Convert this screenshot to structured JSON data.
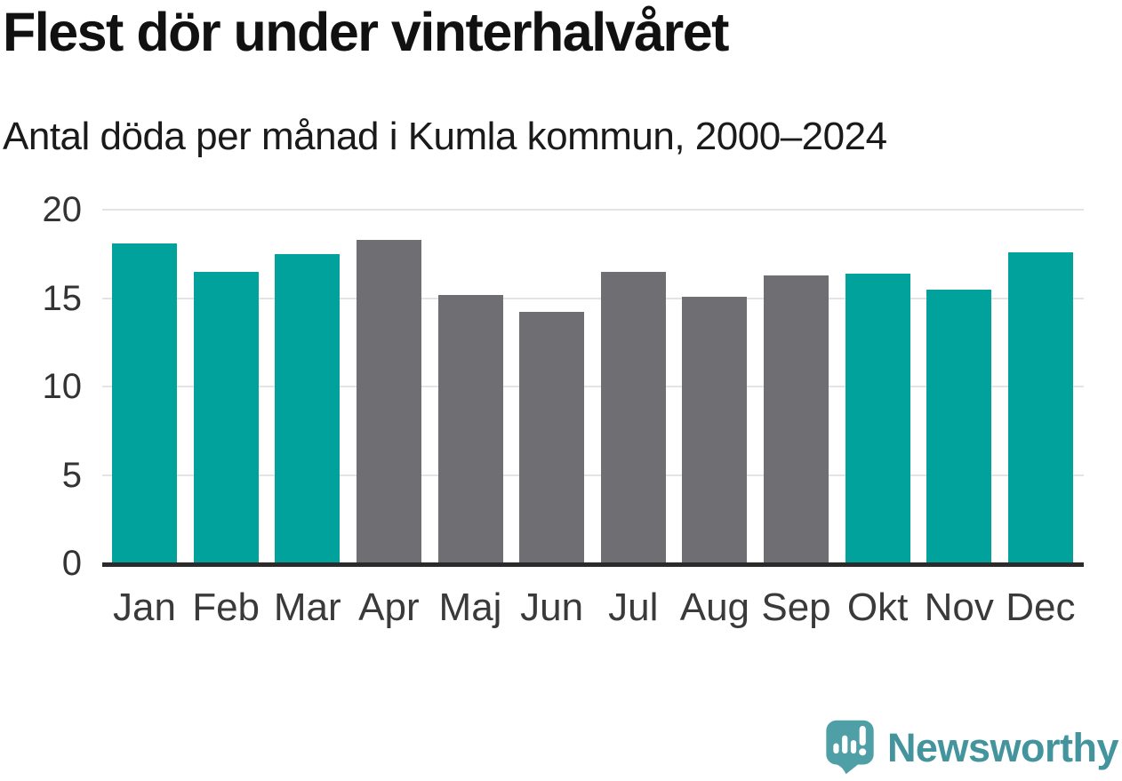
{
  "chart_data": {
    "type": "bar",
    "title": "Flest dör under vinterhalvåret",
    "subtitle": "Antal döda per månad i Kumla kommun, 2000–2024",
    "categories": [
      "Jan",
      "Feb",
      "Mar",
      "Apr",
      "Maj",
      "Jun",
      "Jul",
      "Aug",
      "Sep",
      "Okt",
      "Nov",
      "Dec"
    ],
    "values": [
      18.1,
      16.5,
      17.5,
      18.3,
      15.2,
      14.2,
      16.5,
      15.1,
      16.3,
      16.4,
      15.5,
      17.6
    ],
    "bar_colors": [
      "#00A29B",
      "#00A29B",
      "#00A29B",
      "#6E6E73",
      "#6E6E73",
      "#6E6E73",
      "#6E6E73",
      "#6E6E73",
      "#6E6E73",
      "#00A29B",
      "#00A29B",
      "#00A29B"
    ],
    "xlabel": "",
    "ylabel": "",
    "ylim": [
      0,
      20
    ],
    "yticks": [
      0,
      5,
      10,
      15,
      20
    ],
    "grid": true,
    "legend": false
  },
  "footer": {
    "brand": "Newsworthy"
  },
  "colors": {
    "bar_teal": "#00A29B",
    "bar_gray": "#6E6E73",
    "logo_text_teal": "#43949C",
    "logo_icon_teal": "#4FA0A6",
    "axis_text": "#333333",
    "gridline": "#E4E4E4",
    "baseline": "#2B2B2B"
  }
}
